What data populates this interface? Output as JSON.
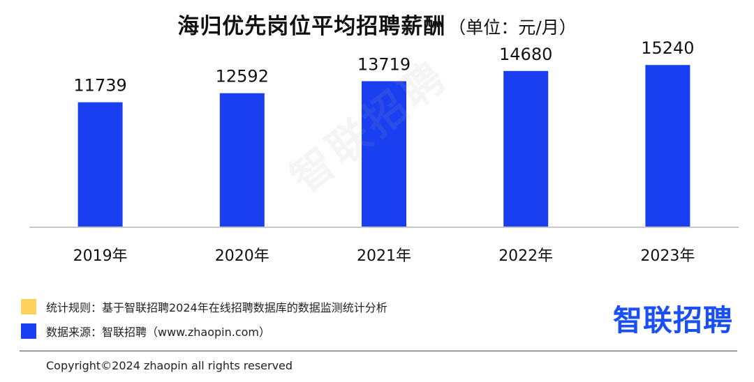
{
  "header": {
    "title": "海归优先岗位平均招聘薪酬",
    "unit": "（单位：元/月）"
  },
  "chart_data": {
    "type": "bar",
    "categories": [
      "2019年",
      "2020年",
      "2021年",
      "2022年",
      "2023年"
    ],
    "values": [
      11739,
      12592,
      13719,
      14680,
      15240
    ],
    "ylim": [
      0,
      16500
    ],
    "grid": false,
    "bar_color": "#1a3ff0",
    "axis_color": "#c8c8c8"
  },
  "watermark": {
    "text": "智联招聘"
  },
  "legend": {
    "rule": {
      "text": "统计规则：基于智联招聘2024年在线招聘数据库的数据监测统计分析",
      "color": "#fdd25c"
    },
    "source": {
      "text": "数据来源：智联招聘（www.zhaopin.com）",
      "color": "#1a3ff0"
    }
  },
  "brand": {
    "logo_text": "智联招聘",
    "color": "#1a4ff5"
  },
  "footer": {
    "copyright": "Copyright©2024 zhaopin all rights reserved"
  }
}
